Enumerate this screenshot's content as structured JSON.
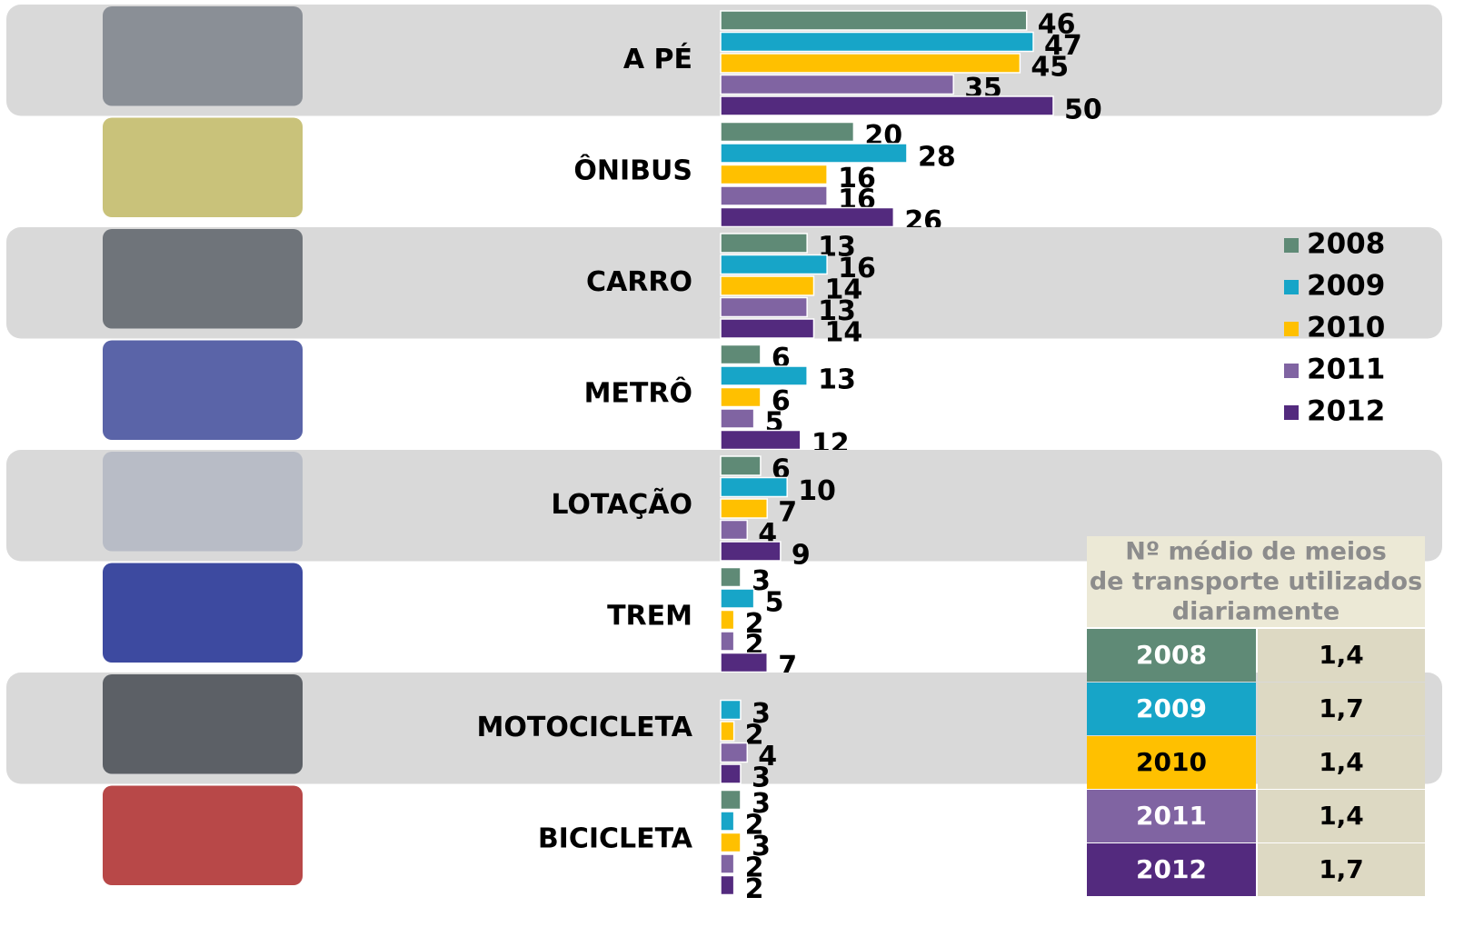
{
  "chart_data": {
    "type": "bar",
    "orientation": "horizontal",
    "categories": [
      "A PÉ",
      "ÔNIBUS",
      "CARRO",
      "METRÔ",
      "LOTAÇÃO",
      "TREM",
      "MOTOCICLETA",
      "BICICLETA"
    ],
    "series": [
      {
        "name": "2008",
        "color": "#5f8a76",
        "values": [
          46,
          20,
          13,
          6,
          6,
          3,
          null,
          3
        ]
      },
      {
        "name": "2009",
        "color": "#17a5c8",
        "values": [
          47,
          28,
          16,
          13,
          10,
          5,
          3,
          2
        ]
      },
      {
        "name": "2010",
        "color": "#ffc000",
        "values": [
          45,
          16,
          14,
          6,
          7,
          2,
          2,
          3
        ]
      },
      {
        "name": "2011",
        "color": "#8064a2",
        "values": [
          35,
          16,
          13,
          5,
          4,
          2,
          4,
          2
        ]
      },
      {
        "name": "2012",
        "color": "#532a7e",
        "values": [
          50,
          26,
          14,
          12,
          9,
          7,
          3,
          2
        ]
      }
    ],
    "legend": "right"
  },
  "table": {
    "title": "Nº médio de meios de transporte utilizados diariamente",
    "rows": [
      [
        "2008",
        "1,4"
      ],
      [
        "2009",
        "1,7"
      ],
      [
        "2010",
        "1,4"
      ],
      [
        "2011",
        "1,4"
      ],
      [
        "2012",
        "1,7"
      ]
    ]
  }
}
